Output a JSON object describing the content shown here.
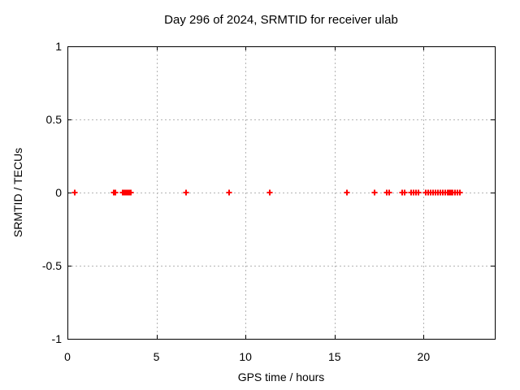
{
  "colors": {
    "background": "#ffffff",
    "axis": "#000000",
    "grid": "#b4b4b4",
    "marker": "#ff0000",
    "text": "#000000"
  },
  "chart_data": {
    "type": "scatter",
    "title": "Day 296 of 2024, SRMTID for receiver ulab",
    "xlabel": "GPS time / hours",
    "ylabel": "SRMTID / TECUs",
    "xlim": [
      0,
      24
    ],
    "ylim": [
      -1,
      1
    ],
    "grid": true,
    "legend_position": "none",
    "marker": "plus",
    "marker_color": "#ff0000",
    "xticks": {
      "values": [
        0,
        5,
        10,
        15,
        20
      ],
      "labels": [
        "0",
        "5",
        "10",
        "15",
        "20"
      ]
    },
    "yticks": {
      "values": [
        1,
        0.5,
        0,
        -0.5,
        -1
      ],
      "labels": [
        "1",
        "0.5",
        "0",
        "-0.5",
        "-1"
      ]
    },
    "series": [
      {
        "name": "SRMTID",
        "color": "#ff0000",
        "x": [
          0.41,
          2.59,
          2.68,
          3.09,
          3.18,
          3.27,
          3.36,
          3.45,
          3.55,
          6.64,
          9.09,
          11.36,
          15.68,
          17.23,
          17.91,
          18.09,
          18.82,
          18.95,
          19.32,
          19.45,
          19.59,
          19.73,
          20.14,
          20.27,
          20.41,
          20.55,
          20.68,
          20.82,
          20.95,
          21.09,
          21.23,
          21.36,
          21.45,
          21.55,
          21.64,
          21.77,
          21.91,
          22.05
        ],
        "y": [
          0,
          0,
          0,
          0,
          0,
          0,
          0,
          0,
          0,
          0,
          0,
          0,
          0,
          0,
          0,
          0,
          0,
          0,
          0,
          0,
          0,
          0,
          0,
          0,
          0,
          0,
          0,
          0,
          0,
          0,
          0,
          0,
          0,
          0,
          0,
          0,
          0,
          0
        ]
      }
    ]
  }
}
